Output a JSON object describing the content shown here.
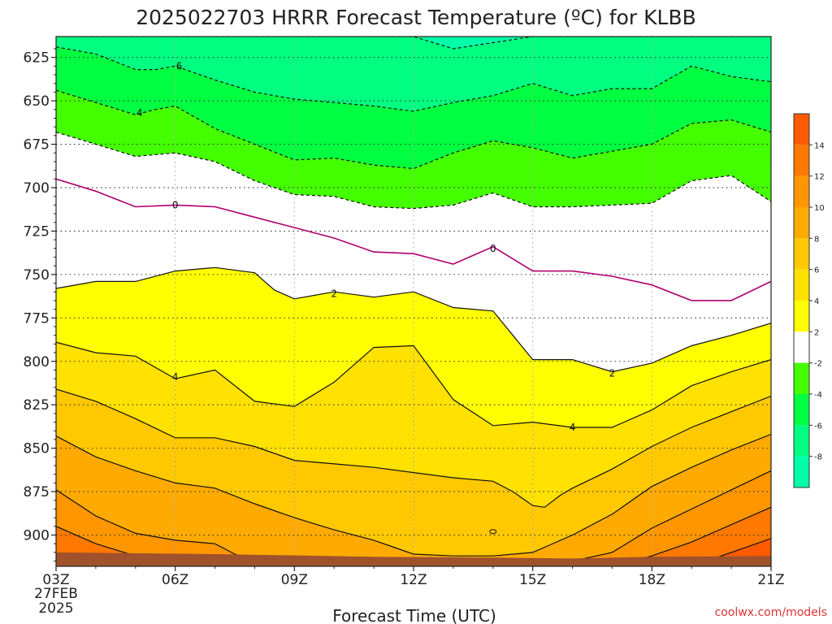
{
  "page": {
    "title": "2025022703 HRRR Forecast Temperature (ºC) for KLBB",
    "xlabel": "Forecast Time (UTC)",
    "credit": "coolwx.com/models"
  },
  "chart_data": {
    "type": "contour",
    "title": "2025022703 HRRR Forecast Temperature (ºC) for KLBB",
    "xlabel": "Forecast Time (UTC)",
    "ylabel": "",
    "x_ticks": [
      "03Z",
      "06Z",
      "09Z",
      "12Z",
      "15Z",
      "18Z",
      "21Z"
    ],
    "x_tick_hours": [
      3,
      6,
      9,
      12,
      15,
      18,
      21
    ],
    "x_date_line1": "27FEB",
    "x_date_line2": "2025",
    "xlim": [
      3,
      21
    ],
    "y_ticks": [
      625,
      650,
      675,
      700,
      725,
      750,
      775,
      800,
      825,
      850,
      875,
      900
    ],
    "ylim": [
      613,
      918
    ],
    "y_scale": "pressure (hPa), inverted",
    "grid": true,
    "colorbar": {
      "ticks": [
        14,
        12,
        10,
        8,
        6,
        4,
        2,
        -2,
        -4,
        -6,
        -8
      ],
      "bands": [
        {
          "lo": 14,
          "hi": 16,
          "color": "#ff5a00"
        },
        {
          "lo": 12,
          "hi": 14,
          "color": "#ff7800"
        },
        {
          "lo": 10,
          "hi": 12,
          "color": "#ff9600"
        },
        {
          "lo": 8,
          "hi": 10,
          "color": "#ffaa00"
        },
        {
          "lo": 6,
          "hi": 8,
          "color": "#ffc800"
        },
        {
          "lo": 4,
          "hi": 6,
          "color": "#ffe100"
        },
        {
          "lo": 2,
          "hi": 4,
          "color": "#ffff00"
        },
        {
          "lo": -2,
          "hi": 2,
          "color": "#ffffff"
        },
        {
          "lo": -4,
          "hi": -2,
          "color": "#44ff00"
        },
        {
          "lo": -6,
          "hi": -4,
          "color": "#00ff40"
        },
        {
          "lo": -8,
          "hi": -6,
          "color": "#00ff80"
        },
        {
          "lo": -10,
          "hi": -8,
          "color": "#00ffa8"
        }
      ]
    },
    "contours": [
      {
        "level": -8,
        "style": "dashed",
        "points": [
          [
            3,
            613
          ],
          [
            12,
            613
          ],
          [
            13,
            620
          ],
          [
            15,
            613
          ],
          [
            21,
            613
          ]
        ]
      },
      {
        "level": -6,
        "style": "dashed",
        "points": [
          [
            3,
            619
          ],
          [
            4,
            623
          ],
          [
            5,
            632
          ],
          [
            5.5,
            632
          ],
          [
            6,
            630
          ],
          [
            7,
            638
          ],
          [
            8,
            645
          ],
          [
            9,
            649
          ],
          [
            10,
            651
          ],
          [
            11,
            653
          ],
          [
            12,
            656
          ],
          [
            13,
            651
          ],
          [
            14,
            647
          ],
          [
            15,
            640
          ],
          [
            16,
            647
          ],
          [
            17,
            643
          ],
          [
            18,
            643
          ],
          [
            19,
            630
          ],
          [
            20,
            636
          ],
          [
            21,
            639
          ]
        ]
      },
      {
        "level": -4,
        "style": "dashed",
        "points": [
          [
            3,
            644
          ],
          [
            4,
            651
          ],
          [
            5,
            658
          ],
          [
            5.5,
            655
          ],
          [
            6,
            653
          ],
          [
            7,
            666
          ],
          [
            8,
            675
          ],
          [
            9,
            684
          ],
          [
            10,
            683
          ],
          [
            11,
            687
          ],
          [
            12,
            689
          ],
          [
            13,
            680
          ],
          [
            14,
            673
          ],
          [
            15,
            677
          ],
          [
            16,
            683
          ],
          [
            17,
            679
          ],
          [
            18,
            675
          ],
          [
            19,
            663
          ],
          [
            20,
            661
          ],
          [
            21,
            668
          ]
        ]
      },
      {
        "level": -2,
        "style": "dashed",
        "points": [
          [
            3,
            668
          ],
          [
            4,
            675
          ],
          [
            5,
            682
          ],
          [
            6,
            680
          ],
          [
            7,
            685
          ],
          [
            8,
            696
          ],
          [
            9,
            704
          ],
          [
            10,
            705
          ],
          [
            11,
            711
          ],
          [
            12,
            712
          ],
          [
            13,
            710
          ],
          [
            14,
            703
          ],
          [
            15,
            711
          ],
          [
            16,
            711
          ],
          [
            17,
            710
          ],
          [
            18,
            709
          ],
          [
            19,
            696
          ],
          [
            20,
            693
          ],
          [
            21,
            708
          ]
        ]
      },
      {
        "level": 0,
        "style": "solid",
        "color": "#b0006e",
        "points": [
          [
            3,
            695
          ],
          [
            4,
            702
          ],
          [
            5,
            711
          ],
          [
            6,
            710
          ],
          [
            7,
            711
          ],
          [
            8,
            717
          ],
          [
            9,
            723
          ],
          [
            10,
            729
          ],
          [
            11,
            737
          ],
          [
            12,
            738
          ],
          [
            13,
            744
          ],
          [
            14,
            734
          ],
          [
            15,
            748
          ],
          [
            16,
            748
          ],
          [
            17,
            751
          ],
          [
            18,
            756
          ],
          [
            19,
            765
          ],
          [
            20,
            765
          ],
          [
            21,
            754
          ]
        ]
      },
      {
        "level": 2,
        "style": "solid",
        "points": [
          [
            3,
            758
          ],
          [
            4,
            754
          ],
          [
            5,
            754
          ],
          [
            6,
            748
          ],
          [
            7,
            746
          ],
          [
            8,
            749
          ],
          [
            8.5,
            759
          ],
          [
            9,
            764
          ],
          [
            10,
            760
          ],
          [
            11,
            763
          ],
          [
            12,
            760
          ],
          [
            13,
            769
          ],
          [
            14,
            771
          ],
          [
            15,
            799
          ],
          [
            16,
            799
          ],
          [
            17,
            806
          ],
          [
            18,
            801
          ],
          [
            19,
            791
          ],
          [
            20,
            785
          ],
          [
            21,
            778
          ]
        ]
      },
      {
        "level": 4,
        "style": "solid",
        "points": [
          [
            3,
            789
          ],
          [
            4,
            795
          ],
          [
            5,
            797
          ],
          [
            6,
            810
          ],
          [
            7,
            805
          ],
          [
            8,
            823
          ],
          [
            9,
            826
          ],
          [
            10,
            812
          ],
          [
            11,
            792
          ],
          [
            12,
            791
          ],
          [
            13,
            822
          ],
          [
            14,
            837
          ],
          [
            15,
            835
          ],
          [
            16,
            838
          ],
          [
            17,
            838
          ],
          [
            18,
            828
          ],
          [
            19,
            814
          ],
          [
            20,
            806
          ],
          [
            21,
            799
          ]
        ]
      }
    ],
    "shaded_regions": [
      {
        "range": "-8 to -6",
        "color": "#00ff80"
      },
      {
        "range": "-6 to -4",
        "color": "#00ff40"
      },
      {
        "range": "-4 to -2",
        "color": "#44ff00"
      },
      {
        "range": "-2 to 2",
        "color": "#ffffff"
      },
      {
        "range": "2 to 4",
        "color": "#ffff00"
      },
      {
        "range": "4 to 6",
        "color": "#ffe100"
      },
      {
        "range": "6 to 8",
        "color": "#ffc800"
      },
      {
        "range": "8 to 10",
        "color": "#ffaa00"
      },
      {
        "range": "10 to 12",
        "color": "#ff9600"
      },
      {
        "range": "12 to 14",
        "color": "#ff7800"
      },
      {
        "range": "14 to 16",
        "color": "#ff5a00"
      }
    ],
    "contour_labels": [
      {
        "text": "6",
        "x": 6.1,
        "y": 630
      },
      {
        "text": "4",
        "x": 5.1,
        "y": 657
      },
      {
        "text": "0",
        "x": 6.0,
        "y": 710
      },
      {
        "text": "0",
        "x": 14.0,
        "y": 735
      },
      {
        "text": "2",
        "x": 10.0,
        "y": 761
      },
      {
        "text": "2",
        "x": 17.0,
        "y": 807
      },
      {
        "text": "4",
        "x": 6.0,
        "y": 809
      },
      {
        "text": "4",
        "x": 16.0,
        "y": 838
      }
    ],
    "surface_color": "#a0522d"
  }
}
